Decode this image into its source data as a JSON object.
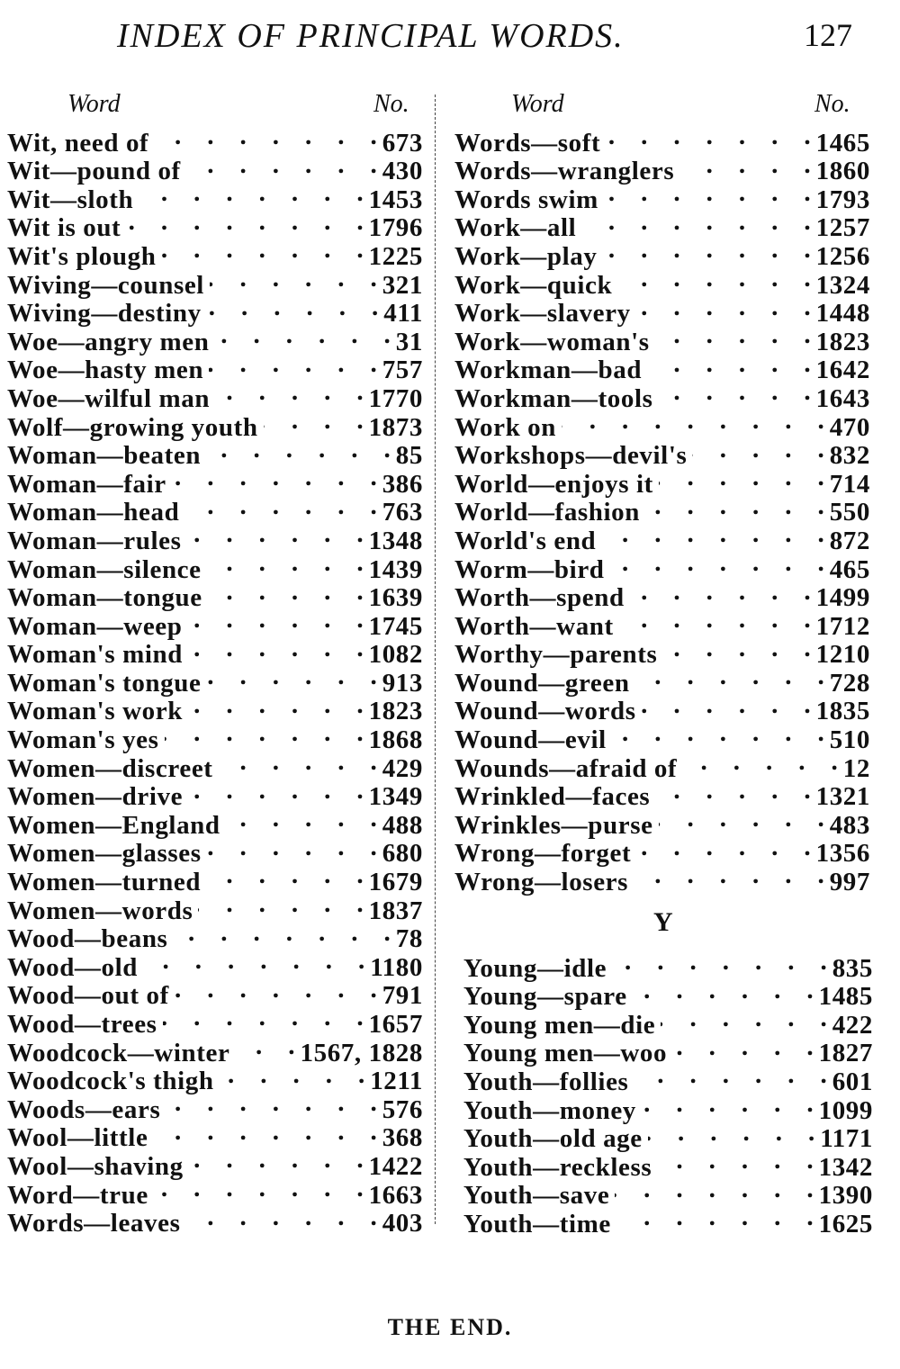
{
  "header": {
    "title": "INDEX OF PRINCIPAL WORDS.",
    "page_number": "127"
  },
  "left_column": {
    "word_header": "Word",
    "no_header": "No.",
    "entries": [
      {
        "word": "Wit, need of",
        "no": "673"
      },
      {
        "word": "Wit—pound of",
        "no": "430"
      },
      {
        "word": "Wit—sloth",
        "no": "1453"
      },
      {
        "word": "Wit is out",
        "no": "1796"
      },
      {
        "word": "Wit's plough",
        "no": "1225"
      },
      {
        "word": "Wiving—counsel",
        "no": "321"
      },
      {
        "word": "Wiving—destiny",
        "no": "411"
      },
      {
        "word": "Woe—angry men",
        "no": "31"
      },
      {
        "word": "Woe—hasty men",
        "no": "757"
      },
      {
        "word": "Woe—wilful man",
        "no": "1770"
      },
      {
        "word": "Wolf—growing youth",
        "no": "1873"
      },
      {
        "word": "Woman—beaten",
        "no": "85"
      },
      {
        "word": "Woman—fair",
        "no": "386"
      },
      {
        "word": "Woman—head",
        "no": "763"
      },
      {
        "word": "Woman—rules",
        "no": "1348"
      },
      {
        "word": "Woman—silence",
        "no": "1439"
      },
      {
        "word": "Woman—tongue",
        "no": "1639"
      },
      {
        "word": "Woman—weep",
        "no": "1745"
      },
      {
        "word": "Woman's mind",
        "no": "1082"
      },
      {
        "word": "Woman's tongue",
        "no": "913"
      },
      {
        "word": "Woman's work",
        "no": "1823"
      },
      {
        "word": "Woman's yes",
        "no": "1868"
      },
      {
        "word": "Women—discreet",
        "no": "429"
      },
      {
        "word": "Women—drive",
        "no": "1349"
      },
      {
        "word": "Women—England",
        "no": "488"
      },
      {
        "word": "Women—glasses",
        "no": "680"
      },
      {
        "word": "Women—turned",
        "no": "1679"
      },
      {
        "word": "Women—words",
        "no": "1837"
      },
      {
        "word": "Wood—beans",
        "no": "78"
      },
      {
        "word": "Wood—old",
        "no": "1180"
      },
      {
        "word": "Wood—out of",
        "no": "791"
      },
      {
        "word": "Wood—trees",
        "no": "1657"
      },
      {
        "word": "Woodcock—winter",
        "no": "1567, 1828"
      },
      {
        "word": "Woodcock's thigh",
        "no": "1211"
      },
      {
        "word": "Woods—ears",
        "no": "576"
      },
      {
        "word": "Wool—little",
        "no": "368"
      },
      {
        "word": "Wool—shaving",
        "no": "1422"
      },
      {
        "word": "Word—true",
        "no": "1663"
      },
      {
        "word": "Words—leaves",
        "no": "403"
      }
    ]
  },
  "right_column": {
    "word_header": "Word",
    "no_header": "No.",
    "entries": [
      {
        "word": "Words—soft",
        "no": "1465"
      },
      {
        "word": "Words—wranglers",
        "no": "1860"
      },
      {
        "word": "Words swim",
        "no": "1793"
      },
      {
        "word": "Work—all",
        "no": "1257"
      },
      {
        "word": "Work—play",
        "no": "1256"
      },
      {
        "word": "Work—quick",
        "no": "1324"
      },
      {
        "word": "Work—slavery",
        "no": "1448"
      },
      {
        "word": "Work—woman's",
        "no": "1823"
      },
      {
        "word": "Workman—bad",
        "no": "1642"
      },
      {
        "word": "Workman—tools",
        "no": "1643"
      },
      {
        "word": "Work on",
        "no": "470"
      },
      {
        "word": "Workshops—devil's",
        "no": "832"
      },
      {
        "word": "World—enjoys it",
        "no": "714"
      },
      {
        "word": "World—fashion",
        "no": "550"
      },
      {
        "word": "World's end",
        "no": "872"
      },
      {
        "word": "Worm—bird",
        "no": "465"
      },
      {
        "word": "Worth—spend",
        "no": "1499"
      },
      {
        "word": "Worth—want",
        "no": "1712"
      },
      {
        "word": "Worthy—parents",
        "no": "1210"
      },
      {
        "word": "Wound—green",
        "no": "728"
      },
      {
        "word": "Wound—words",
        "no": "1835"
      },
      {
        "word": "Wound—evil",
        "no": "510"
      },
      {
        "word": "Wounds—afraid of",
        "no": "12"
      },
      {
        "word": "Wrinkled—faces",
        "no": "1321"
      },
      {
        "word": "Wrinkles—purse",
        "no": "483"
      },
      {
        "word": "Wrong—forget",
        "no": "1356"
      },
      {
        "word": "Wrong—losers",
        "no": "997"
      }
    ],
    "section_letter": "Y",
    "y_entries": [
      {
        "word": "Young—idle",
        "no": "835"
      },
      {
        "word": "Young—spare",
        "no": "1485"
      },
      {
        "word": "Young men—die",
        "no": "422"
      },
      {
        "word": "Young men—woo",
        "no": "1827"
      },
      {
        "word": "Youth—follies",
        "no": "601"
      },
      {
        "word": "Youth—money",
        "no": "1099"
      },
      {
        "word": "Youth—old age",
        "no": "1171"
      },
      {
        "word": "Youth—reckless",
        "no": "1342"
      },
      {
        "word": "Youth—save",
        "no": "1390"
      },
      {
        "word": "Youth—time",
        "no": "1625"
      }
    ]
  },
  "footer": {
    "text": "THE END."
  }
}
